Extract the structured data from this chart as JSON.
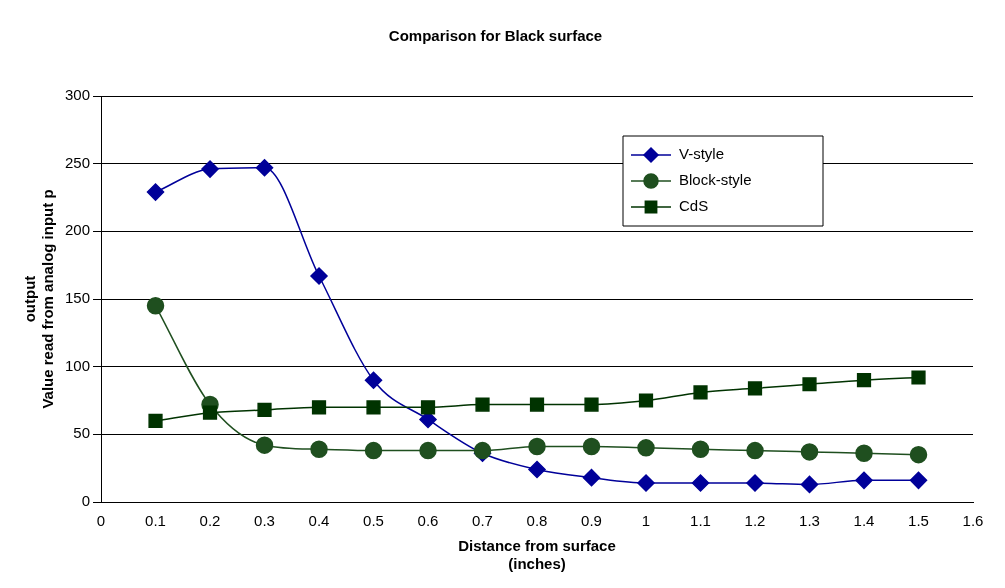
{
  "chart_data": {
    "type": "line",
    "title": "Comparison for Black surface",
    "xlabel": "Distance from surface\n(inches)",
    "ylabel": "output\nValue read from analog input p",
    "x": [
      0.1,
      0.2,
      0.3,
      0.4,
      0.5,
      0.6,
      0.7,
      0.8,
      0.9,
      1.0,
      1.1,
      1.2,
      1.3,
      1.4,
      1.5
    ],
    "series": [
      {
        "name": "V-style",
        "color": "#000099",
        "marker": "diamond",
        "values": [
          229,
          246,
          247,
          167,
          90,
          61,
          36,
          24,
          18,
          14,
          14,
          14,
          13,
          16,
          16
        ]
      },
      {
        "name": "Block-style",
        "color": "#1f4f1f",
        "marker": "circle",
        "values": [
          145,
          72,
          42,
          39,
          38,
          38,
          38,
          41,
          41,
          40,
          39,
          38,
          37,
          36,
          35
        ]
      },
      {
        "name": "CdS",
        "color": "#003300",
        "marker": "square",
        "values": [
          60,
          66,
          68,
          70,
          70,
          70,
          72,
          72,
          72,
          75,
          81,
          84,
          87,
          90,
          92
        ]
      }
    ],
    "xlim": [
      0,
      1.6
    ],
    "xticks": [
      0,
      0.1,
      0.2,
      0.3,
      0.4,
      0.5,
      0.6,
      0.7,
      0.8,
      0.9,
      1,
      1.1,
      1.2,
      1.3,
      1.4,
      1.5,
      1.6
    ],
    "ylim": [
      0,
      300
    ],
    "yticks": [
      0,
      50,
      100,
      150,
      200,
      250,
      300
    ],
    "grid": "y",
    "legend": "top right"
  }
}
